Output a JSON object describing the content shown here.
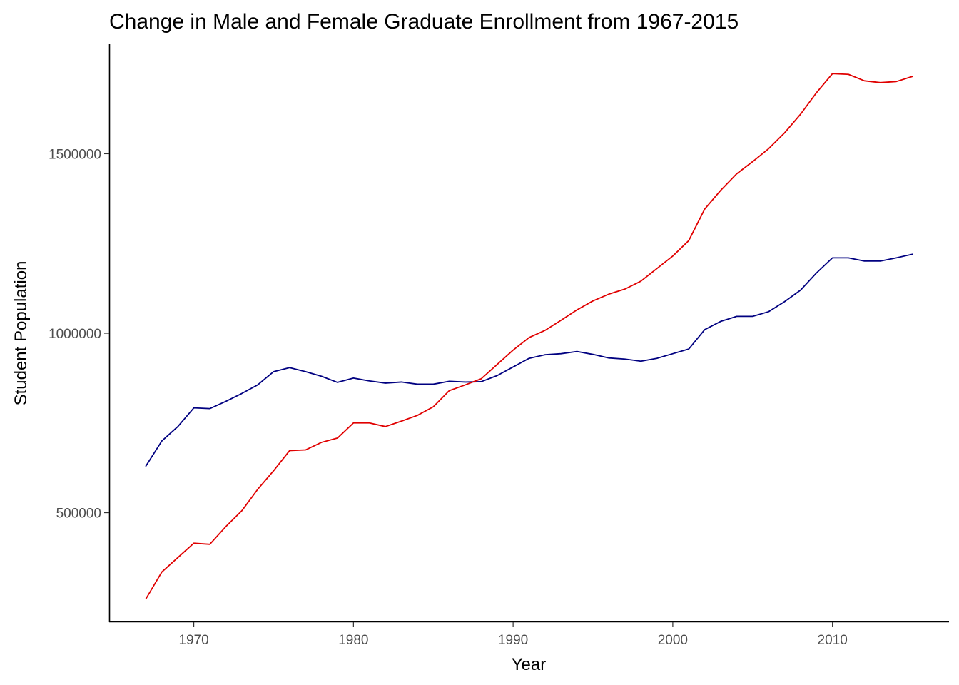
{
  "chart_data": {
    "type": "line",
    "title": "Change in Male and Female Graduate Enrollment from 1967-2015",
    "xlabel": "Year",
    "ylabel": "Student Population",
    "xlim": [
      1964.7,
      2017.3
    ],
    "ylim": [
      195000,
      1805000
    ],
    "x_ticks": [
      1970,
      1980,
      1990,
      2000,
      2010
    ],
    "y_ticks": [
      500000,
      1000000,
      1500000
    ],
    "y_tick_labels": [
      "500000",
      "1000000",
      "1500000"
    ],
    "grid": false,
    "legend": "none",
    "x": [
      1967,
      1968,
      1969,
      1970,
      1971,
      1972,
      1973,
      1974,
      1975,
      1976,
      1977,
      1978,
      1979,
      1980,
      1981,
      1982,
      1983,
      1984,
      1985,
      1986,
      1987,
      1988,
      1989,
      1990,
      1991,
      1992,
      1993,
      1994,
      1995,
      1996,
      1997,
      1998,
      1999,
      2000,
      2001,
      2002,
      2003,
      2004,
      2005,
      2006,
      2007,
      2008,
      2009,
      2010,
      2011,
      2012,
      2013,
      2014,
      2015
    ],
    "series": [
      {
        "color": "#000080",
        "values": [
          630000,
          700000,
          740000,
          792000,
          790000,
          810000,
          832000,
          856000,
          893000,
          904000,
          893000,
          880000,
          863000,
          875000,
          867000,
          861000,
          864000,
          858000,
          858000,
          866000,
          864000,
          865000,
          882000,
          906000,
          930000,
          940000,
          943000,
          949000,
          941000,
          931000,
          928000,
          922000,
          930000,
          943000,
          956000,
          1010000,
          1033000,
          1047000,
          1047000,
          1060000,
          1088000,
          1120000,
          1168000,
          1210000,
          1210000,
          1201000,
          1201000,
          1210000,
          1220000
        ]
      },
      {
        "color": "#e00000",
        "values": [
          260000,
          335000,
          375000,
          415000,
          412000,
          461000,
          505000,
          565000,
          617000,
          673000,
          675000,
          696000,
          708000,
          750000,
          750000,
          740000,
          755000,
          771000,
          795000,
          840000,
          856000,
          873000,
          913000,
          953000,
          988000,
          1008000,
          1036000,
          1065000,
          1090000,
          1109000,
          1123000,
          1145000,
          1180000,
          1215000,
          1258000,
          1346000,
          1398000,
          1444000,
          1478000,
          1514000,
          1558000,
          1610000,
          1670000,
          1723000,
          1721000,
          1703000,
          1698000,
          1701000,
          1715000
        ]
      }
    ]
  }
}
